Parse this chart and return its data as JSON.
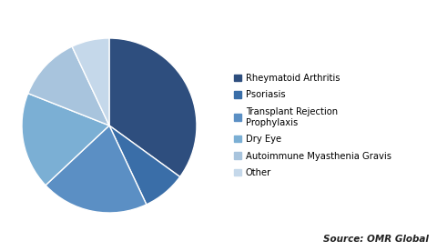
{
  "labels": [
    "Rheymatoid Arthritis",
    "Psoriasis",
    "Transplant Rejection\nProphylaxis",
    "Dry Eye",
    "Autoimmune Myasthenia Gravis",
    "Other"
  ],
  "sizes": [
    35,
    8,
    20,
    18,
    12,
    7
  ],
  "colors": [
    "#2E4E7E",
    "#3A6EA8",
    "#5B8FC4",
    "#7BAFD4",
    "#A8C4DD",
    "#C5D8EA"
  ],
  "startangle": 90,
  "counterclock": false,
  "source_text": "Source: OMR Global",
  "background_color": "#FFFFFF",
  "legend_fontsize": 7.2,
  "source_fontsize": 7.5,
  "edge_color": "#FFFFFF",
  "edge_linewidth": 1.0
}
